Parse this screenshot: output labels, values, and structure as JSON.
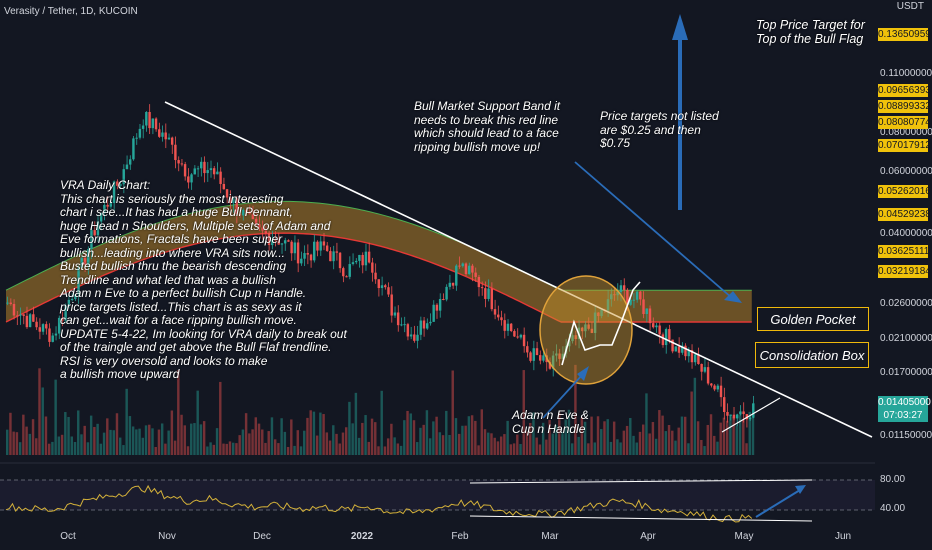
{
  "header": {
    "symbol_line": "Verasity / Tether, 1D, KUCOIN",
    "currency": "USDT"
  },
  "chart_data": [
    {
      "type": "candlestick",
      "title": "Verasity / Tether, 1D, KUCOIN",
      "xlabel": "",
      "ylabel": "",
      "y_scale": "log",
      "ylim": [
        0.0105,
        0.165
      ],
      "x_tick_labels": [
        "Oct",
        "Nov",
        "Dec",
        "2022",
        "Feb",
        "Mar",
        "Apr",
        "May",
        "Jun"
      ],
      "y_tick_labels": [
        "0.11000000",
        "0.08000000",
        "0.06000000",
        "0.04000000",
        "0.02600000",
        "0.02100000",
        "0.01700000",
        "0.01150000"
      ],
      "series": [
        {
          "name": "price",
          "x": [
            "Sep 20",
            "Sep 27",
            "Oct 4",
            "Oct 11",
            "Oct 18",
            "Oct 25",
            "Nov 1",
            "Nov 8",
            "Nov 15",
            "Nov 22",
            "Nov 29",
            "Dec 6",
            "Dec 13",
            "Dec 20",
            "Dec 27",
            "Jan 3",
            "Jan 10",
            "Jan 17",
            "Jan 24",
            "Jan 31",
            "Feb 7",
            "Feb 14",
            "Feb 21",
            "Feb 28",
            "Mar 7",
            "Mar 14",
            "Mar 21",
            "Mar 28",
            "Apr 4",
            "Apr 11",
            "Apr 18",
            "Apr 25",
            "May 2",
            "May 5"
          ],
          "y": [
            0.027,
            0.024,
            0.022,
            0.03,
            0.045,
            0.058,
            0.085,
            0.075,
            0.06,
            0.062,
            0.05,
            0.042,
            0.04,
            0.036,
            0.038,
            0.033,
            0.036,
            0.026,
            0.022,
            0.027,
            0.034,
            0.03,
            0.024,
            0.02,
            0.018,
            0.021,
            0.024,
            0.029,
            0.027,
            0.022,
            0.02,
            0.017,
            0.0135,
            0.01405
          ]
        }
      ],
      "price_labels": [
        "0.13650959",
        "0.09656393",
        "0.08899332",
        "0.08080774",
        "0.07017912",
        "0.05262016",
        "0.04529238",
        "0.03625111",
        "0.03219184",
        "0.01405000"
      ],
      "current_price": "0.01405000",
      "countdown": "07:03:27",
      "annotations": {
        "top_target": "Top Price Target for Top of the Bull Flag",
        "band": "Bull Market Support Band it needs to break this red line which should lead to a face ripping bullish move up!",
        "targets_not_listed": "Price targets not listed are $0.25 and then $0.75",
        "golden_pocket": "Golden Pocket",
        "consolidation": "Consolidation Box",
        "adam_eve": "Adam n Eve & Cup n Handle",
        "description": [
          "VRA Daily Chart:",
          "This chart is seriously the most interesting",
          "chart i see...It has had a huge Bull Pennant,",
          "huge Head n Shoulders, Multiple sets of Adam and",
          "Eve formations, Fractals have been super",
          "bullish...leading into where VRA sits now...",
          "Busted bullish thru the bearish descending",
          "Trendline and what led that was a bullish",
          "Adam n Eve to a perfect bullish Cup n Handle.",
          "price targets listed...This chart is as sexy as it",
          " can get...wait for a face ripping bullish move.",
          "UPDATE 5-4-22, Im looking for VRA daily to break out",
          "of the traingle and get above the Bull Flaf trendline.",
          "RSI is very oversold and looks to make",
          "a bullish move upward"
        ]
      }
    },
    {
      "type": "line",
      "title": "",
      "y_tick_labels": [
        "80.00",
        "40.00"
      ],
      "ylim": [
        20,
        95
      ],
      "series": [
        {
          "name": "",
          "y": [
            45,
            42,
            40,
            48,
            55,
            62,
            70,
            60,
            52,
            55,
            48,
            44,
            46,
            42,
            44,
            40,
            45,
            38,
            36,
            42,
            50,
            46,
            38,
            36,
            34,
            40,
            46,
            52,
            48,
            40,
            38,
            32,
            28,
            30
          ]
        }
      ]
    }
  ],
  "colors": {
    "background": "#131722",
    "up": "#26a69a",
    "down": "#ef5350",
    "band_fill": "#b5822a",
    "band_red": "#e53935",
    "trendline": "#ffffff",
    "arrow": "#2a6cb8",
    "label_border": "#f0b90b",
    "price_tag": "#f0c20b",
    "rsi_line": "#d4b13a"
  }
}
